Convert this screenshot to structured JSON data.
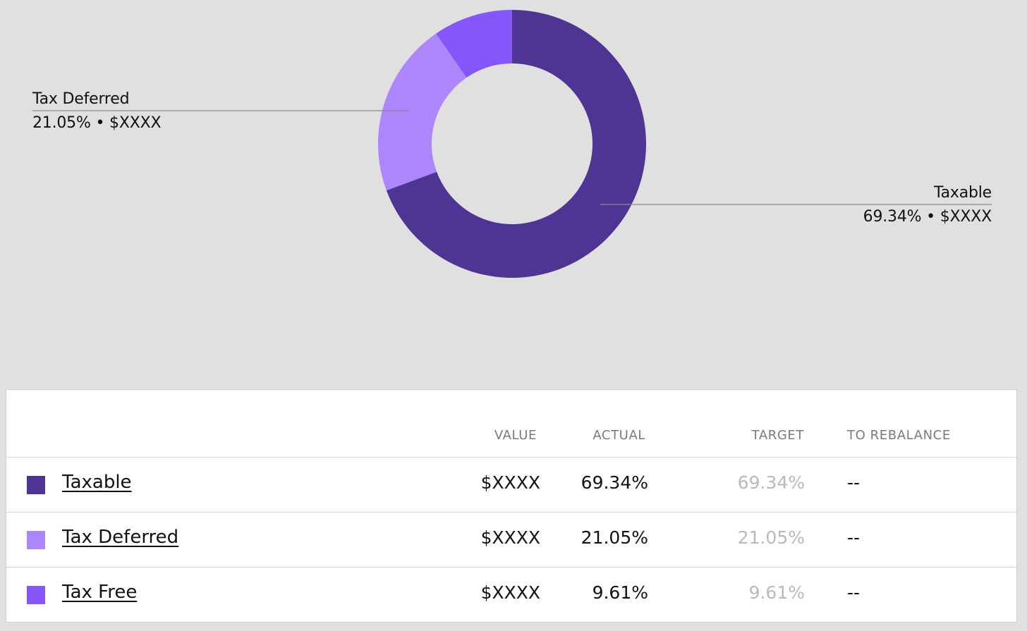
{
  "chart_data": {
    "type": "pie",
    "variant": "donut",
    "slices": [
      {
        "label": "Taxable",
        "percent": 69.34,
        "percent_label": "69.34%",
        "value_label": "$XXXX",
        "color": "#4e3593"
      },
      {
        "label": "Tax Deferred",
        "percent": 21.05,
        "percent_label": "21.05%",
        "value_label": "$XXXX",
        "color": "#ad85fd"
      },
      {
        "label": "Tax Free",
        "percent": 9.61,
        "percent_label": "9.61%",
        "value_label": "$XXXX",
        "color": "#8557fa"
      }
    ],
    "callouts": {
      "tax_deferred": {
        "label": "Tax Deferred",
        "text": "21.05% • $XXXX"
      },
      "taxable": {
        "label": "Taxable",
        "text": "69.34% • $XXXX"
      }
    }
  },
  "table": {
    "headers": {
      "value": "VALUE",
      "actual": "ACTUAL",
      "target": "TARGET",
      "to_rebalance": "TO REBALANCE"
    },
    "rows": [
      {
        "name": "Taxable",
        "color": "#4e3593",
        "value": "$XXXX",
        "actual": "69.34%",
        "target": "69.34%",
        "to_rebalance": "--"
      },
      {
        "name": "Tax Deferred",
        "color": "#ad85fd",
        "value": "$XXXX",
        "actual": "21.05%",
        "target": "21.05%",
        "to_rebalance": "--"
      },
      {
        "name": "Tax Free",
        "color": "#8557fa",
        "value": "$XXXX",
        "actual": "9.61%",
        "target": "9.61%",
        "to_rebalance": "--"
      }
    ]
  }
}
